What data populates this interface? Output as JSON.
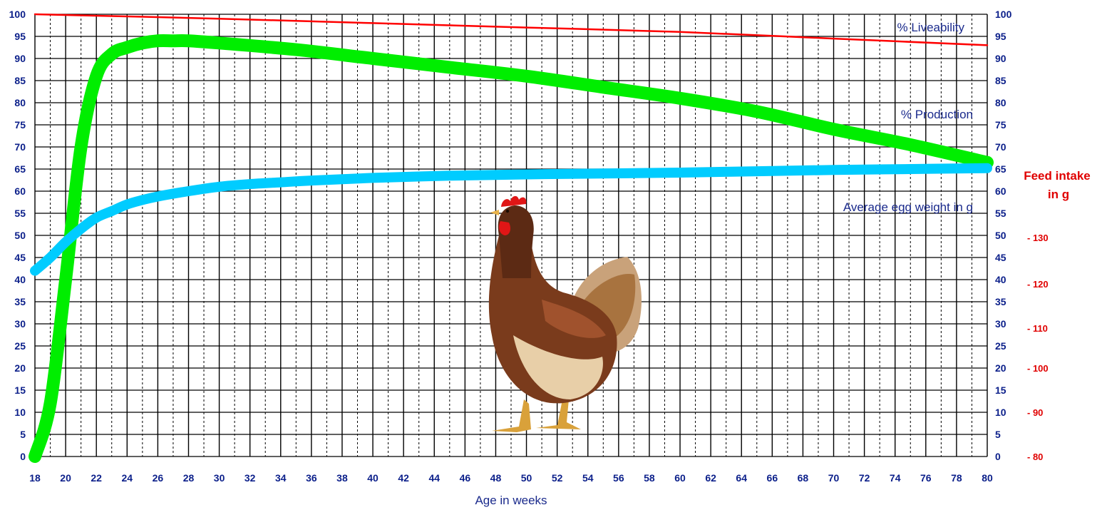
{
  "chart_data": {
    "type": "line",
    "title": "",
    "xlabel": "Age in weeks",
    "ylabel": "",
    "xlim": [
      18,
      80
    ],
    "ylim": [
      0,
      100
    ],
    "x_ticks": [
      18,
      20,
      22,
      24,
      26,
      28,
      30,
      32,
      34,
      36,
      38,
      40,
      42,
      44,
      46,
      48,
      50,
      52,
      54,
      56,
      58,
      60,
      62,
      64,
      66,
      68,
      70,
      72,
      74,
      76,
      78,
      80
    ],
    "y_ticks": [
      0,
      5,
      10,
      15,
      20,
      25,
      30,
      35,
      40,
      45,
      50,
      55,
      60,
      65,
      70,
      75,
      80,
      85,
      90,
      95,
      100
    ],
    "grid": true,
    "series": [
      {
        "name": "% Liveability",
        "color": "#ff0000",
        "x": [
          18,
          30,
          40,
          50,
          60,
          70,
          80
        ],
        "y": [
          100,
          99,
          98,
          97,
          96,
          94.5,
          93
        ]
      },
      {
        "name": "% Production",
        "color": "#00ee00",
        "x": [
          18,
          19,
          20,
          21,
          22,
          23,
          24,
          25,
          26,
          27,
          28,
          30,
          35,
          40,
          45,
          50,
          55,
          60,
          65,
          70,
          75,
          80
        ],
        "y": [
          0,
          12,
          40,
          70,
          86,
          91,
          92.5,
          93.5,
          94,
          94,
          94,
          93.5,
          92,
          90,
          88,
          86,
          83.5,
          81,
          78,
          74,
          70.5,
          66.5
        ]
      },
      {
        "name": "Average egg weight in g",
        "color": "#00ccff",
        "x": [
          18,
          19,
          20,
          21,
          22,
          23,
          24,
          25,
          26,
          28,
          30,
          32,
          34,
          36,
          40,
          45,
          50,
          55,
          60,
          65,
          70,
          75,
          80
        ],
        "y": [
          42,
          45,
          48.5,
          51.5,
          54,
          55.5,
          57,
          58,
          58.8,
          60,
          61,
          61.6,
          62,
          62.4,
          63,
          63.5,
          63.8,
          64,
          64.2,
          64.5,
          64.8,
          65,
          65.2
        ]
      }
    ],
    "secondary_axis": {
      "title_line1": "Feed intake",
      "title_line2": "in g",
      "ticks": [
        {
          "label": "-  80",
          "at": 0
        },
        {
          "label": "-  90",
          "at": 10
        },
        {
          "label": "-  100",
          "at": 20
        },
        {
          "label": "-  110",
          "at": 29
        },
        {
          "label": "-  120",
          "at": 39
        },
        {
          "label": "-  130",
          "at": 49.5
        }
      ]
    },
    "illustration": "hen-illustration"
  }
}
